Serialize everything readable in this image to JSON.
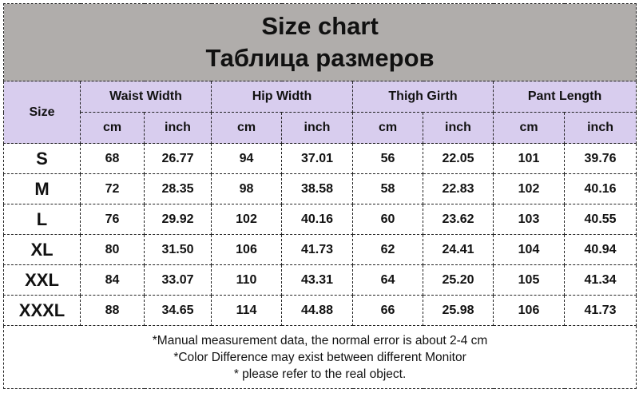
{
  "title": {
    "en": "Size chart",
    "ru": "Таблица размеров"
  },
  "header": {
    "size_label": "Size",
    "groups": [
      "Waist Width",
      "Hip Width",
      "Thigh Girth",
      "Pant Length"
    ],
    "units": [
      "cm",
      "inch",
      "cm",
      "inch",
      "cm",
      "inch",
      "cm",
      "inch"
    ]
  },
  "colors": {
    "title_bg": "#b0adab",
    "header_bg": "#d8cdee"
  },
  "rows": [
    [
      "S",
      "68",
      "26.77",
      "94",
      "37.01",
      "56",
      "22.05",
      "101",
      "39.76"
    ],
    [
      "M",
      "72",
      "28.35",
      "98",
      "38.58",
      "58",
      "22.83",
      "102",
      "40.16"
    ],
    [
      "L",
      "76",
      "29.92",
      "102",
      "40.16",
      "60",
      "23.62",
      "103",
      "40.55"
    ],
    [
      "XL",
      "80",
      "31.50",
      "106",
      "41.73",
      "62",
      "24.41",
      "104",
      "40.94"
    ],
    [
      "XXL",
      "84",
      "33.07",
      "110",
      "43.31",
      "64",
      "25.20",
      "105",
      "41.34"
    ],
    [
      "XXXL",
      "88",
      "34.65",
      "114",
      "44.88",
      "66",
      "25.98",
      "106",
      "41.73"
    ]
  ],
  "notes": [
    "*Manual measurement data, the normal error is about 2-4 cm",
    "*Color Difference may exist between different Monitor",
    "* please refer to the real object."
  ]
}
